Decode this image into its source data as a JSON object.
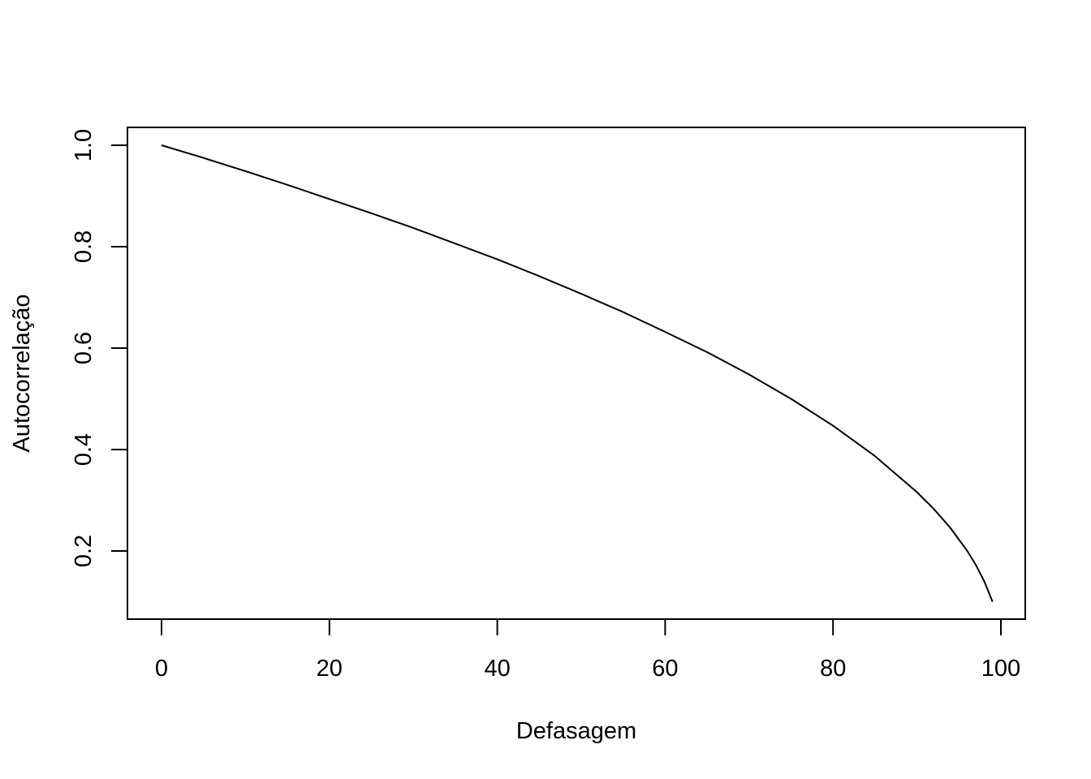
{
  "chart_data": {
    "type": "line",
    "title": "",
    "xlabel": "Defasagem",
    "ylabel": "Autocorrelação",
    "xlim": [
      0,
      100
    ],
    "ylim": [
      0.1,
      1.0
    ],
    "x_ticks": [
      0,
      20,
      40,
      60,
      80,
      100
    ],
    "y_ticks": [
      0.2,
      0.4,
      0.6,
      0.8,
      1.0
    ],
    "x_tick_labels": [
      "0",
      "20",
      "40",
      "60",
      "80",
      "100"
    ],
    "y_tick_labels": [
      "0.2",
      "0.4",
      "0.6",
      "0.8",
      "1.0"
    ],
    "grid": false,
    "legend": "none",
    "line_color": "#000000",
    "series": [
      {
        "x": [
          0,
          5,
          10,
          15,
          20,
          25,
          30,
          35,
          40,
          45,
          50,
          55,
          60,
          65,
          70,
          75,
          80,
          85,
          90,
          92,
          94,
          96,
          97,
          98,
          99
        ],
        "y": [
          1.0,
          0.975,
          0.949,
          0.922,
          0.894,
          0.866,
          0.837,
          0.806,
          0.775,
          0.742,
          0.707,
          0.671,
          0.632,
          0.592,
          0.548,
          0.5,
          0.447,
          0.387,
          0.316,
          0.283,
          0.245,
          0.2,
          0.173,
          0.141,
          0.1
        ]
      }
    ]
  }
}
